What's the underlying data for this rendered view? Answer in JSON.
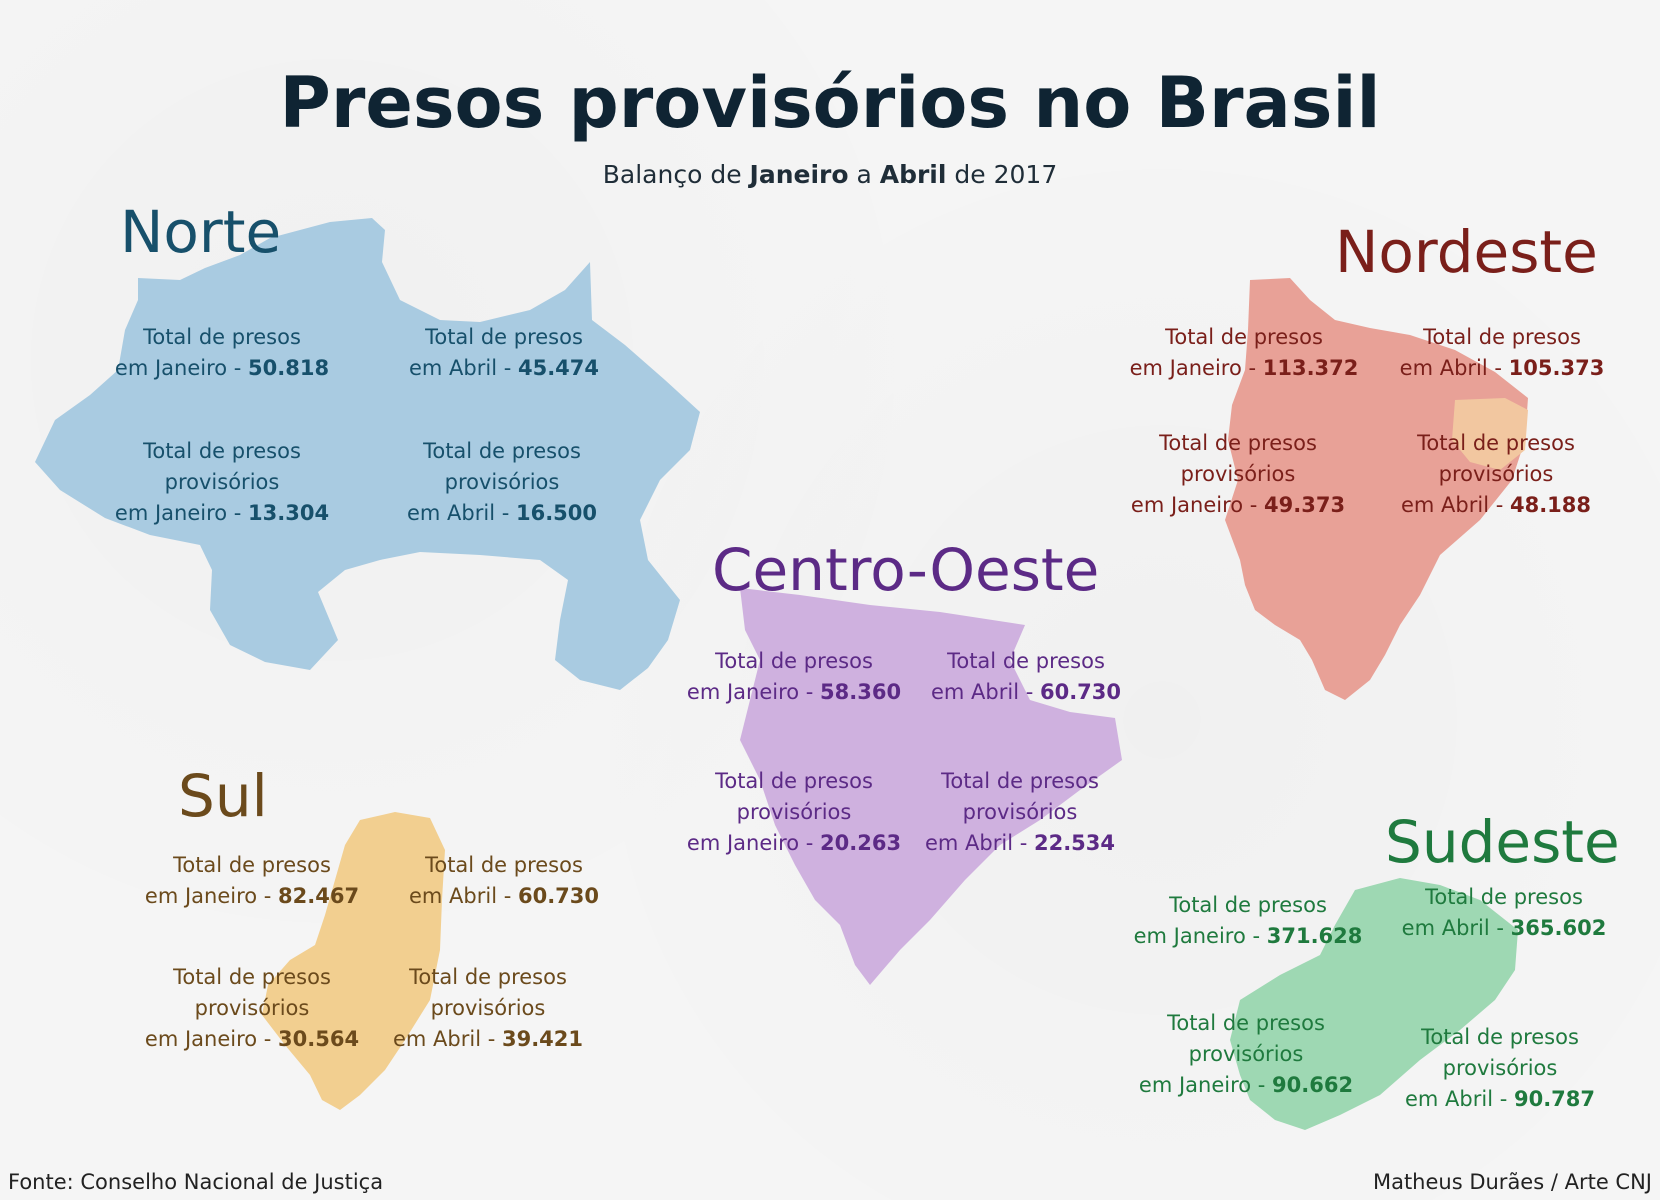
{
  "title": "Presos provisórios no Brasil",
  "subtitle": {
    "part1": "Balanço de ",
    "bold1": "Janeiro",
    "part2": " a ",
    "bold2": "Abril",
    "part3": " de 2017"
  },
  "colors": {
    "norte_map": "#a9cbe1",
    "nordeste_map": "#e8a197",
    "nordeste_highlight": "#f2c7a0",
    "centro_map": "#cfb1df",
    "sul_map": "#f2cf90",
    "sudeste_map": "#9ed8b3"
  },
  "regions": {
    "norte": {
      "name": "Norte",
      "stats": [
        {
          "lines": [
            "Total de presos"
          ],
          "prefix": "em Janeiro - ",
          "value": "50.818"
        },
        {
          "lines": [
            "Total de presos"
          ],
          "prefix": "em Abril - ",
          "value": "45.474"
        },
        {
          "lines": [
            "Total de presos",
            "provisórios"
          ],
          "prefix": "em Janeiro - ",
          "value": "13.304"
        },
        {
          "lines": [
            "Total de presos",
            "provisórios"
          ],
          "prefix": "em Abril - ",
          "value": "16.500"
        }
      ]
    },
    "nordeste": {
      "name": "Nordeste",
      "stats": [
        {
          "lines": [
            "Total de presos"
          ],
          "prefix": "em Janeiro - ",
          "value": "113.372"
        },
        {
          "lines": [
            "Total de presos"
          ],
          "prefix": "em Abril - ",
          "value": "105.373"
        },
        {
          "lines": [
            "Total de presos",
            "provisórios"
          ],
          "prefix": "em Janeiro - ",
          "value": "49.373"
        },
        {
          "lines": [
            "Total de presos",
            "provisórios"
          ],
          "prefix": "em Abril - ",
          "value": "48.188"
        }
      ]
    },
    "centro_oeste": {
      "name": "Centro-Oeste",
      "stats": [
        {
          "lines": [
            "Total de presos"
          ],
          "prefix": "em Janeiro - ",
          "value": "58.360"
        },
        {
          "lines": [
            "Total de presos"
          ],
          "prefix": "em Abril - ",
          "value": "60.730"
        },
        {
          "lines": [
            "Total de presos",
            "provisórios"
          ],
          "prefix": "em Janeiro - ",
          "value": "20.263"
        },
        {
          "lines": [
            "Total de presos",
            "provisórios"
          ],
          "prefix": "em Abril - ",
          "value": "22.534"
        }
      ]
    },
    "sul": {
      "name": "Sul",
      "stats": [
        {
          "lines": [
            "Total de presos"
          ],
          "prefix": "em Janeiro - ",
          "value": "82.467"
        },
        {
          "lines": [
            "Total de presos"
          ],
          "prefix": "em Abril - ",
          "value": "60.730"
        },
        {
          "lines": [
            "Total de presos",
            "provisórios"
          ],
          "prefix": "em Janeiro - ",
          "value": "30.564"
        },
        {
          "lines": [
            "Total de presos",
            "provisórios"
          ],
          "prefix": "em Abril - ",
          "value": "39.421"
        }
      ]
    },
    "sudeste": {
      "name": "Sudeste",
      "stats": [
        {
          "lines": [
            "Total de presos"
          ],
          "prefix": "em Janeiro - ",
          "value": "371.628"
        },
        {
          "lines": [
            "Total de presos"
          ],
          "prefix": "em Abril - ",
          "value": "365.602"
        },
        {
          "lines": [
            "Total de presos",
            "provisórios"
          ],
          "prefix": "em Janeiro - ",
          "value": "90.662"
        },
        {
          "lines": [
            "Total de presos",
            "provisórios"
          ],
          "prefix": "em Abril - ",
          "value": "90.787"
        }
      ]
    }
  },
  "footer": {
    "source": "Fonte: Conselho Nacional de Justiça",
    "credit": "Matheus Durães / Arte CNJ"
  }
}
